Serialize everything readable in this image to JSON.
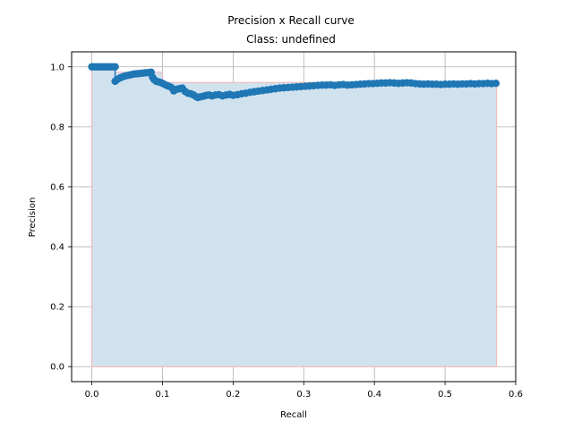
{
  "chart_data": {
    "type": "scatter",
    "title": "Precision x Recall curve",
    "subtitle": "Class: undefined",
    "xlabel": "Recall",
    "ylabel": "Precision",
    "xlim": [
      -0.0286,
      0.6
    ],
    "ylim": [
      -0.05,
      1.05
    ],
    "xticks": [
      0.0,
      0.1,
      0.2,
      0.3,
      0.4,
      0.5,
      0.6
    ],
    "xtick_labels": [
      "0.0",
      "0.1",
      "0.2",
      "0.3",
      "0.4",
      "0.5",
      "0.6"
    ],
    "yticks": [
      0.0,
      0.2,
      0.4,
      0.6,
      0.8,
      1.0
    ],
    "ytick_labels": [
      "0.0",
      "0.2",
      "0.4",
      "0.6",
      "0.8",
      "1.0"
    ],
    "grid": true,
    "colors": {
      "points": "#1f77b4",
      "line": "#1f77b4",
      "fill": "#d1e2ef",
      "fill_edge": "#f4b6b6",
      "grid": "#b0b0b0"
    },
    "interpolated_area": {
      "x": [
        0.0,
        0.0,
        0.033,
        0.033,
        0.1,
        0.1,
        0.573,
        0.573
      ],
      "y": [
        0.0,
        1.0,
        1.0,
        0.982,
        0.982,
        0.948,
        0.948,
        0.0
      ]
    },
    "curve": {
      "x": [
        0.0,
        0.003,
        0.006,
        0.009,
        0.012,
        0.015,
        0.018,
        0.021,
        0.024,
        0.027,
        0.03,
        0.033,
        0.033,
        0.036,
        0.04,
        0.044,
        0.048,
        0.052,
        0.056,
        0.06,
        0.064,
        0.068,
        0.072,
        0.076,
        0.08,
        0.084,
        0.086,
        0.088,
        0.091,
        0.094,
        0.097,
        0.1,
        0.104,
        0.108,
        0.112,
        0.116,
        0.12,
        0.124,
        0.128,
        0.132,
        0.136,
        0.14,
        0.144,
        0.148,
        0.15,
        0.154,
        0.158,
        0.162,
        0.166,
        0.17,
        0.175,
        0.18,
        0.185,
        0.19,
        0.195,
        0.2,
        0.206,
        0.212,
        0.218,
        0.224,
        0.23,
        0.236,
        0.242,
        0.248,
        0.254,
        0.26,
        0.266,
        0.272,
        0.278,
        0.284,
        0.29,
        0.296,
        0.302,
        0.308,
        0.314,
        0.32,
        0.326,
        0.332,
        0.338,
        0.344,
        0.35,
        0.356,
        0.362,
        0.368,
        0.374,
        0.38,
        0.386,
        0.392,
        0.398,
        0.404,
        0.41,
        0.416,
        0.422,
        0.428,
        0.434,
        0.44,
        0.446,
        0.452,
        0.458,
        0.464,
        0.47,
        0.476,
        0.482,
        0.488,
        0.494,
        0.5,
        0.506,
        0.512,
        0.518,
        0.524,
        0.53,
        0.536,
        0.542,
        0.548,
        0.554,
        0.56,
        0.566,
        0.572
      ],
      "y": [
        1.0,
        1.0,
        1.0,
        1.0,
        1.0,
        1.0,
        1.0,
        1.0,
        1.0,
        1.0,
        1.0,
        1.0,
        0.952,
        0.958,
        0.963,
        0.967,
        0.97,
        0.972,
        0.974,
        0.976,
        0.977,
        0.978,
        0.979,
        0.98,
        0.981,
        0.982,
        0.965,
        0.958,
        0.952,
        0.95,
        0.948,
        0.945,
        0.94,
        0.936,
        0.932,
        0.92,
        0.925,
        0.927,
        0.929,
        0.918,
        0.912,
        0.91,
        0.906,
        0.9,
        0.898,
        0.9,
        0.902,
        0.905,
        0.906,
        0.903,
        0.906,
        0.907,
        0.903,
        0.906,
        0.908,
        0.905,
        0.907,
        0.91,
        0.912,
        0.915,
        0.917,
        0.919,
        0.921,
        0.923,
        0.925,
        0.927,
        0.929,
        0.93,
        0.931,
        0.932,
        0.933,
        0.934,
        0.935,
        0.936,
        0.937,
        0.938,
        0.939,
        0.939,
        0.94,
        0.938,
        0.94,
        0.941,
        0.939,
        0.94,
        0.941,
        0.942,
        0.943,
        0.944,
        0.944,
        0.945,
        0.946,
        0.946,
        0.947,
        0.946,
        0.945,
        0.946,
        0.947,
        0.946,
        0.944,
        0.943,
        0.942,
        0.943,
        0.942,
        0.942,
        0.941,
        0.942,
        0.942,
        0.943,
        0.942,
        0.943,
        0.943,
        0.944,
        0.943,
        0.944,
        0.944,
        0.945,
        0.944,
        0.945
      ]
    }
  }
}
